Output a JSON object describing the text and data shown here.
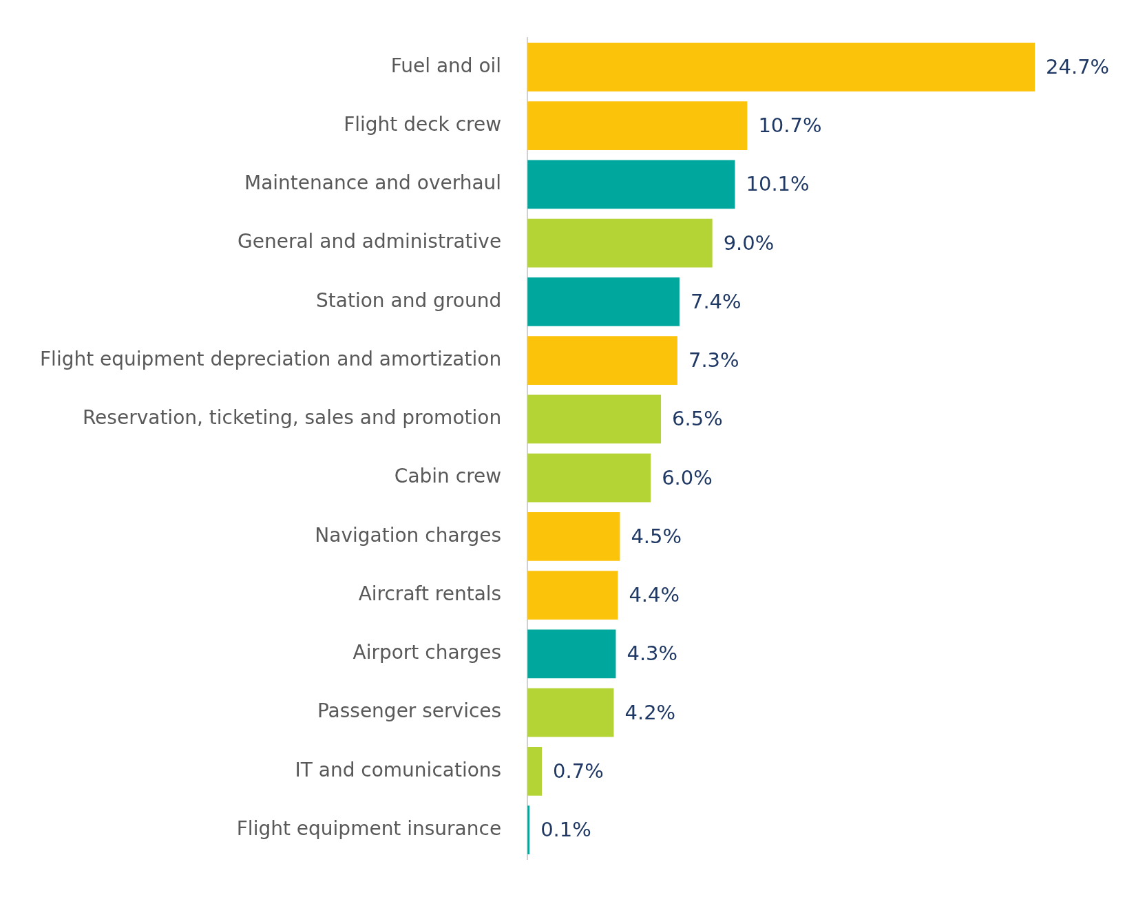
{
  "chart_data": {
    "type": "bar",
    "orientation": "horizontal",
    "categories": [
      "Fuel and oil",
      "Flight deck crew",
      "Maintenance and overhaul",
      "General and administrative",
      "Station and ground",
      "Flight equipment depreciation and amortization",
      "Reservation, ticketing, sales and promotion",
      "Cabin crew",
      "Navigation charges",
      "Aircraft rentals",
      "Airport charges",
      "Passenger services",
      "IT and comunications",
      "Flight equipment insurance"
    ],
    "values": [
      24.7,
      10.7,
      10.1,
      9.0,
      7.4,
      7.3,
      6.5,
      6.0,
      4.5,
      4.4,
      4.3,
      4.2,
      0.7,
      0.1
    ],
    "value_labels": [
      "24.7%",
      "10.7%",
      "10.1%",
      "9.0%",
      "7.4%",
      "7.3%",
      "6.5%",
      "6.0%",
      "4.5%",
      "4.4%",
      "4.3%",
      "4.2%",
      "0.7%",
      "0.1%"
    ],
    "colors": [
      "#fcc30b",
      "#fcc30b",
      "#00a79d",
      "#b4d334",
      "#00a79d",
      "#fcc30b",
      "#b4d334",
      "#b4d334",
      "#fcc30b",
      "#fcc30b",
      "#00a79d",
      "#b4d334",
      "#b4d334",
      "#00a79d"
    ],
    "legend": false
  }
}
